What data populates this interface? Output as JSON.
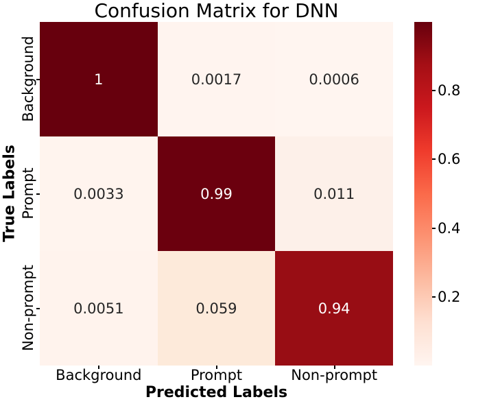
{
  "title": "Confusion Matrix for DNN",
  "axes": {
    "x_label": "Predicted Labels",
    "y_label": "True Labels",
    "x_ticks": [
      "Background",
      "Prompt",
      "Non-prompt"
    ],
    "y_ticks": [
      "Background",
      "Prompt",
      "Non-prompt"
    ]
  },
  "matrix": {
    "display": [
      [
        "1",
        "0.0017",
        "0.0006"
      ],
      [
        "0.0033",
        "0.99",
        "0.011"
      ],
      [
        "0.0051",
        "0.059",
        "0.94"
      ]
    ],
    "cell_colors": [
      [
        "#67000d",
        "#fff4ef",
        "#fff5f0"
      ],
      [
        "#fff4ee",
        "#6b000e",
        "#fdf0e9"
      ],
      [
        "#fff3ed",
        "#fdeada",
        "#980d14"
      ]
    ],
    "text_colors": [
      [
        "#ffffff",
        "#262626",
        "#262626"
      ],
      [
        "#262626",
        "#ffffff",
        "#262626"
      ],
      [
        "#262626",
        "#262626",
        "#ffffff"
      ]
    ]
  },
  "colorbar": {
    "ticks": [
      {
        "label": "0.8",
        "value": 0.8
      },
      {
        "label": "0.6",
        "value": 0.6
      },
      {
        "label": "0.4",
        "value": 0.4
      },
      {
        "label": "0.2",
        "value": 0.2
      }
    ],
    "gradient": [
      "#67000d",
      "#a50f15",
      "#cb181d",
      "#ef3b2c",
      "#fb6a4a",
      "#fc9272",
      "#fcbba1",
      "#fee0d2",
      "#fff5f0"
    ]
  },
  "chart_data": {
    "type": "heatmap",
    "title": "Confusion Matrix for DNN",
    "xlabel": "Predicted Labels",
    "ylabel": "True Labels",
    "x_categories": [
      "Background",
      "Prompt",
      "Non-prompt"
    ],
    "y_categories": [
      "Background",
      "Prompt",
      "Non-prompt"
    ],
    "values": [
      [
        1,
        0.0017,
        0.0006
      ],
      [
        0.0033,
        0.99,
        0.011
      ],
      [
        0.0051,
        0.059,
        0.94
      ]
    ],
    "colormap": "Reds",
    "colorbar_range": [
      0,
      1
    ],
    "colorbar_ticks": [
      0.2,
      0.4,
      0.6,
      0.8
    ],
    "colorbar_position": "right",
    "grid": false
  }
}
